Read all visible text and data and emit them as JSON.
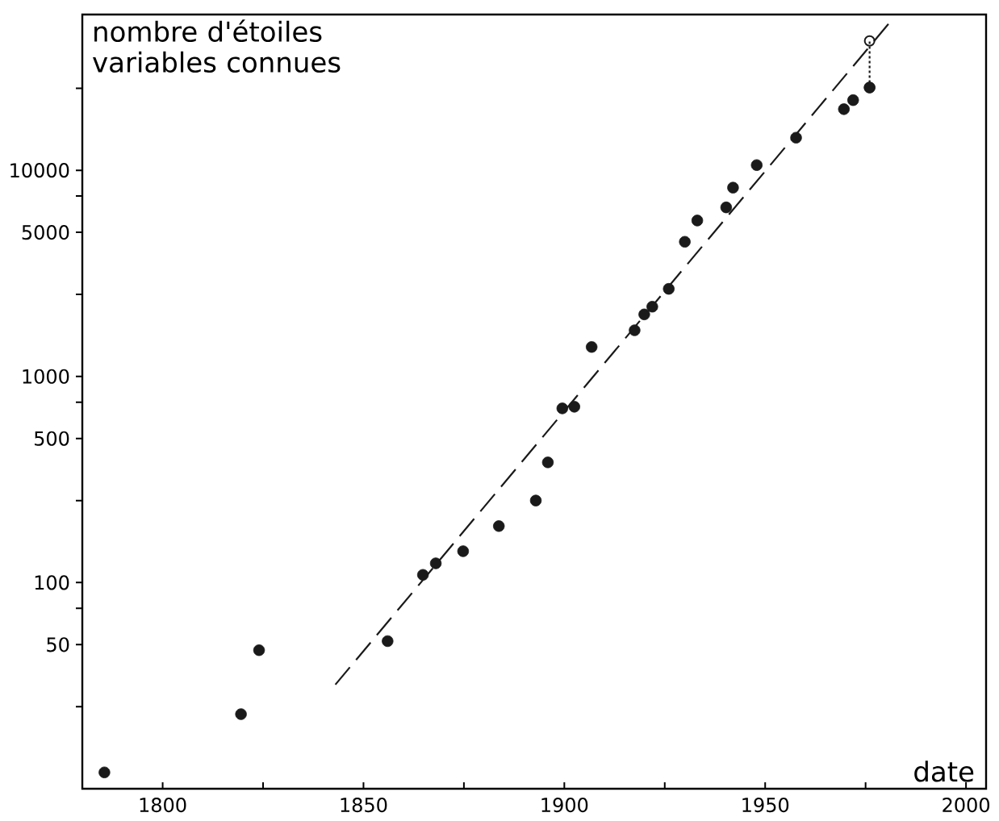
{
  "chart_data": {
    "type": "scatter",
    "xlabel": "date",
    "ylabel": "nombre d'étoiles variables connues",
    "log": "y",
    "xlim": [
      1780,
      2005
    ],
    "ylim": [
      10,
      57000
    ],
    "xticks": [
      1800,
      {
        "value": 1825,
        "label": null
      },
      1850,
      {
        "value": 1875,
        "label": null
      },
      1900,
      {
        "value": 1925,
        "label": null
      },
      1950,
      {
        "value": 1975,
        "label": null
      },
      2000
    ],
    "yticks": [
      {
        "value": 25,
        "label": null
      },
      50,
      {
        "value": 75,
        "label": null
      },
      100,
      {
        "value": 250,
        "label": null
      },
      500,
      {
        "value": 750,
        "label": null
      },
      1000,
      {
        "value": 2500,
        "label": null
      },
      5000,
      {
        "value": 7500,
        "label": null
      },
      10000,
      {
        "value": 25000,
        "label": null
      }
    ],
    "series": [
      {
        "type": "line",
        "color": "#1a1a1a",
        "line_style": "dashed",
        "marker": "none",
        "x": [
          1843,
          1982
        ],
        "values": [
          32,
          55000
        ]
      },
      {
        "type": "line",
        "color": "#1a1a1a",
        "line_style": "dotted",
        "marker": "circle",
        "x": [
          1976,
          1976
        ],
        "values": [
          25200,
          42400
        ]
      },
      {
        "color": "#1a1a1a",
        "marker": "circle",
        "x": [
          1785.5,
          1819.5,
          1824,
          1856,
          1864.8,
          1868,
          1874.8,
          1883.7,
          1892.9,
          1895.9,
          1899.5,
          1902.5,
          1906.8,
          1917.5,
          1919.9,
          1921.9,
          1926,
          1930,
          1933.1,
          1940.3,
          1942,
          1947.9,
          1957.7,
          1969.6,
          1971.9,
          1976
        ],
        "values": [
          12,
          23,
          47,
          52,
          109,
          124,
          142,
          188,
          250,
          383,
          700,
          713,
          1390,
          1675,
          2000,
          2180,
          2660,
          4500,
          5710,
          6610,
          8240,
          10600,
          14400,
          19800,
          21900,
          25200
        ]
      }
    ]
  }
}
